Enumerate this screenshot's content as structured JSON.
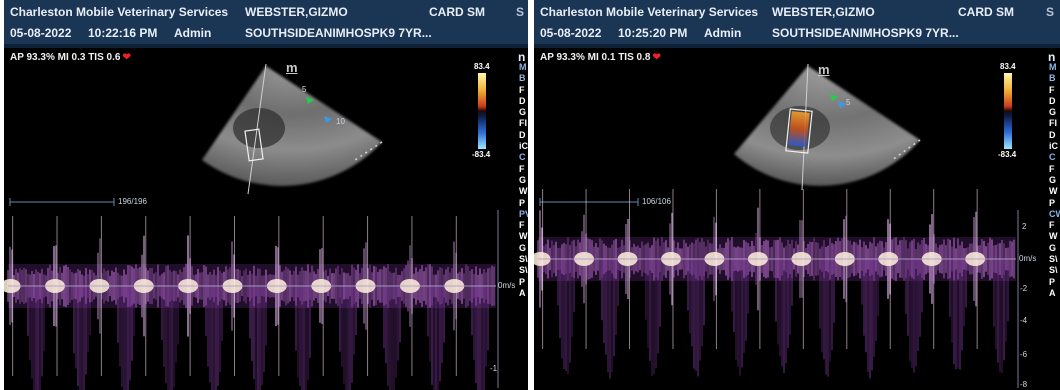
{
  "panels": [
    {
      "clinic": "Charleston Mobile Veterinary Services",
      "patient": "WEBSTER,GIZMO",
      "preset": "CARD SM",
      "overflow": "S",
      "date": "05-08-2022",
      "time": "10:22:16 PM",
      "operator": "Admin",
      "patient_id": "SOUTHSIDEANIMHOSPK9 7YR...",
      "params": "AP 93.3%  MI 0.3  TIS 0.6",
      "logo": "m",
      "corner": "n",
      "cbar_top": "83.4",
      "cbar_bottom": "-83.4",
      "counter": "196/196",
      "baseline_label": "0m/s",
      "axis_labels": [
        "-1"
      ],
      "depth_marks": [
        "5",
        "10"
      ],
      "side_labels": [
        {
          "text": "M",
          "color": "#8fb4e8"
        },
        {
          "text": "B",
          "color": "#8fb4e8"
        },
        {
          "text": "F",
          "color": "#ffffff"
        },
        {
          "text": "D",
          "color": "#ffffff"
        },
        {
          "text": "G",
          "color": "#ffffff"
        },
        {
          "text": "FI",
          "color": "#ffffff"
        },
        {
          "text": "D",
          "color": "#ffffff"
        },
        {
          "text": "iC",
          "color": "#ffffff"
        },
        {
          "text": "C",
          "color": "#8fb4e8"
        },
        {
          "text": "F",
          "color": "#ffffff"
        },
        {
          "text": "G",
          "color": "#ffffff"
        },
        {
          "text": "W",
          "color": "#ffffff"
        },
        {
          "text": "P",
          "color": "#ffffff"
        },
        {
          "text": "PV",
          "color": "#8fb4e8"
        },
        {
          "text": "F",
          "color": "#ffffff"
        },
        {
          "text": "W",
          "color": "#ffffff"
        },
        {
          "text": "G",
          "color": "#ffffff"
        },
        {
          "text": "S\\",
          "color": "#ffffff"
        },
        {
          "text": "S\\",
          "color": "#ffffff"
        },
        {
          "text": "P",
          "color": "#ffffff"
        },
        {
          "text": "A",
          "color": "#ffffff"
        }
      ]
    },
    {
      "clinic": "Charleston Mobile Veterinary Services",
      "patient": "WEBSTER,GIZMO",
      "preset": "CARD SM",
      "overflow": "S",
      "date": "05-08-2022",
      "time": "10:25:20 PM",
      "operator": "Admin",
      "patient_id": "SOUTHSIDEANIMHOSPK9 7YR...",
      "params": "AP 93.3%  MI 0.1  TIS 0.8",
      "logo": "m",
      "corner": "n",
      "cbar_top": "83.4",
      "cbar_bottom": "-83.4",
      "counter": "106/106",
      "baseline_label": "0m/s",
      "axis_labels": [
        "2",
        "-2",
        "-4",
        "-6",
        "-8"
      ],
      "depth_marks": [
        "5"
      ],
      "side_labels": [
        {
          "text": "M",
          "color": "#8fb4e8"
        },
        {
          "text": "B",
          "color": "#8fb4e8"
        },
        {
          "text": "F",
          "color": "#ffffff"
        },
        {
          "text": "D",
          "color": "#ffffff"
        },
        {
          "text": "G",
          "color": "#ffffff"
        },
        {
          "text": "FI",
          "color": "#ffffff"
        },
        {
          "text": "D",
          "color": "#ffffff"
        },
        {
          "text": "iC",
          "color": "#ffffff"
        },
        {
          "text": "C",
          "color": "#8fb4e8"
        },
        {
          "text": "F",
          "color": "#ffffff"
        },
        {
          "text": "G",
          "color": "#ffffff"
        },
        {
          "text": "W",
          "color": "#ffffff"
        },
        {
          "text": "P",
          "color": "#ffffff"
        },
        {
          "text": "CW",
          "color": "#8fb4e8"
        },
        {
          "text": "F",
          "color": "#ffffff"
        },
        {
          "text": "W",
          "color": "#ffffff"
        },
        {
          "text": "G",
          "color": "#ffffff"
        },
        {
          "text": "S\\",
          "color": "#ffffff"
        },
        {
          "text": "S\\",
          "color": "#ffffff"
        },
        {
          "text": "P",
          "color": "#ffffff"
        },
        {
          "text": "A",
          "color": "#ffffff"
        }
      ]
    }
  ],
  "colors": {
    "header_bg": "#1b3554",
    "sector_gray": "#8a8a8a",
    "doppler_bright": "#ffe8c8",
    "doppler_mid": "#c86ad0",
    "doppler_dim": "#3a1850"
  },
  "icons": [
    "heart-icon",
    "green-marker-icon",
    "blue-marker-icon"
  ]
}
